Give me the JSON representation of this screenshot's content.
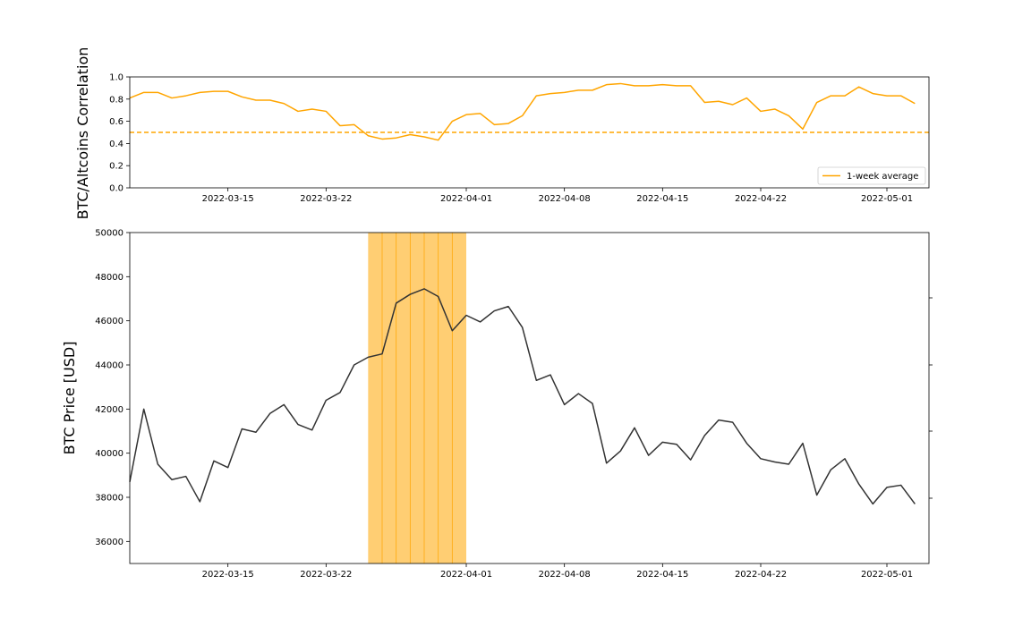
{
  "chart_data": [
    {
      "type": "line",
      "ylabel": "BTC/Altcoins Correlation",
      "ylim": [
        0.0,
        1.0
      ],
      "yticks": [
        "0.0",
        "0.2",
        "0.4",
        "0.6",
        "0.8",
        "1.0"
      ],
      "xlim": [
        "2022-03-08",
        "2022-05-04"
      ],
      "xticks": [
        "2022-03-15",
        "2022-03-22",
        "2022-04-01",
        "2022-04-08",
        "2022-04-15",
        "2022-04-22",
        "2022-05-01"
      ],
      "reference_line": {
        "y": 0.5,
        "style": "dashed",
        "color": "#ffa500"
      },
      "legend": {
        "position": "lower-right",
        "entries": [
          "1-week average"
        ]
      },
      "series": [
        {
          "name": "1-week average",
          "color": "#ffa500",
          "start": "2022-03-08",
          "values": [
            0.81,
            0.86,
            0.86,
            0.81,
            0.83,
            0.86,
            0.87,
            0.87,
            0.82,
            0.79,
            0.79,
            0.76,
            0.69,
            0.71,
            0.69,
            0.56,
            0.57,
            0.47,
            0.44,
            0.45,
            0.48,
            0.46,
            0.43,
            0.6,
            0.66,
            0.67,
            0.57,
            0.58,
            0.65,
            0.83,
            0.85,
            0.86,
            0.88,
            0.88,
            0.93,
            0.94,
            0.92,
            0.92,
            0.93,
            0.92,
            0.92,
            0.77,
            0.78,
            0.75,
            0.81,
            0.69,
            0.71,
            0.65,
            0.53,
            0.77,
            0.83,
            0.83,
            0.91,
            0.85,
            0.83,
            0.83,
            0.76
          ]
        }
      ]
    },
    {
      "type": "line",
      "ylabel": "BTC Price [USD]",
      "ylim": [
        35000,
        50000
      ],
      "yticks": [
        "36000",
        "38000",
        "40000",
        "42000",
        "44000",
        "46000",
        "48000",
        "50000"
      ],
      "xlim": [
        "2022-03-08",
        "2022-05-04"
      ],
      "xticks": [
        "2022-03-15",
        "2022-03-22",
        "2022-04-01",
        "2022-04-08",
        "2022-04-15",
        "2022-04-22",
        "2022-05-01"
      ],
      "highlight": {
        "from": "2022-03-25",
        "to": "2022-03-31",
        "color": "#ffa500"
      },
      "series": [
        {
          "color": "#333333",
          "start": "2022-03-08",
          "values": [
            38700,
            42000,
            39500,
            38800,
            38950,
            37800,
            39650,
            39350,
            41100,
            40950,
            41800,
            42200,
            41300,
            41050,
            42400,
            42750,
            44000,
            44350,
            44500,
            46800,
            47200,
            47450,
            47100,
            45550,
            46250,
            45950,
            46450,
            46650,
            45700,
            43300,
            43550,
            42200,
            42700,
            42250,
            39550,
            40100,
            41150,
            39900,
            40500,
            40400,
            39700,
            40800,
            41500,
            41400,
            40450,
            39750,
            39600,
            39500,
            40450,
            38100,
            39250,
            39750,
            38600,
            37700,
            38450,
            38550,
            37700
          ]
        }
      ]
    }
  ]
}
